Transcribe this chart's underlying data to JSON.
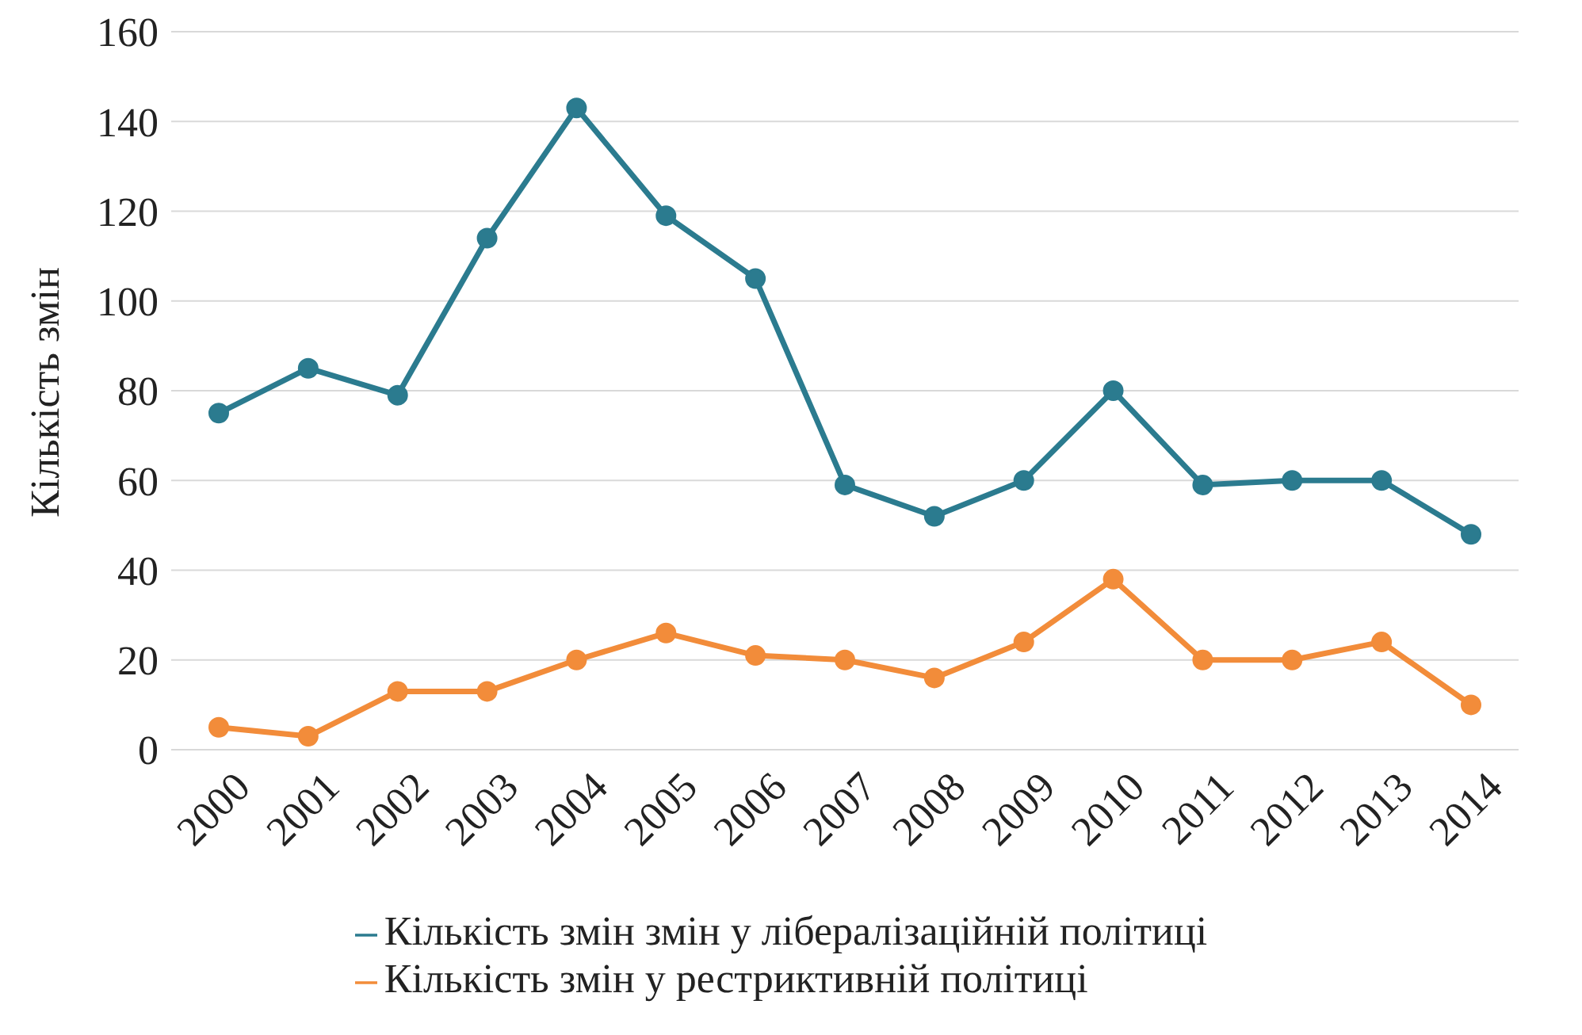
{
  "chart_data": {
    "type": "line",
    "ylabel": "Кількість змін",
    "categories": [
      "2000",
      "2001",
      "2002",
      "2003",
      "2004",
      "2005",
      "2006",
      "2007",
      "2008",
      "2009",
      "2010",
      "2011",
      "2012",
      "2013",
      "2014"
    ],
    "series": [
      {
        "name": "Кількість змін змін у лібералізаційній політиці",
        "color": "#2b7b8f",
        "values": [
          75,
          85,
          79,
          114,
          143,
          119,
          105,
          59,
          52,
          60,
          80,
          59,
          60,
          60,
          48
        ]
      },
      {
        "name": "Кількість змін у рестриктивній політиці",
        "color": "#f28c3a",
        "values": [
          5,
          3,
          13,
          13,
          20,
          26,
          21,
          20,
          16,
          24,
          38,
          20,
          20,
          24,
          10
        ]
      }
    ],
    "ylim": [
      0,
      160
    ],
    "yticks": [
      0,
      20,
      40,
      60,
      80,
      100,
      120,
      140,
      160
    ],
    "grid": "y",
    "legend": "bottom",
    "marker": "circle",
    "line_style": "solid"
  }
}
